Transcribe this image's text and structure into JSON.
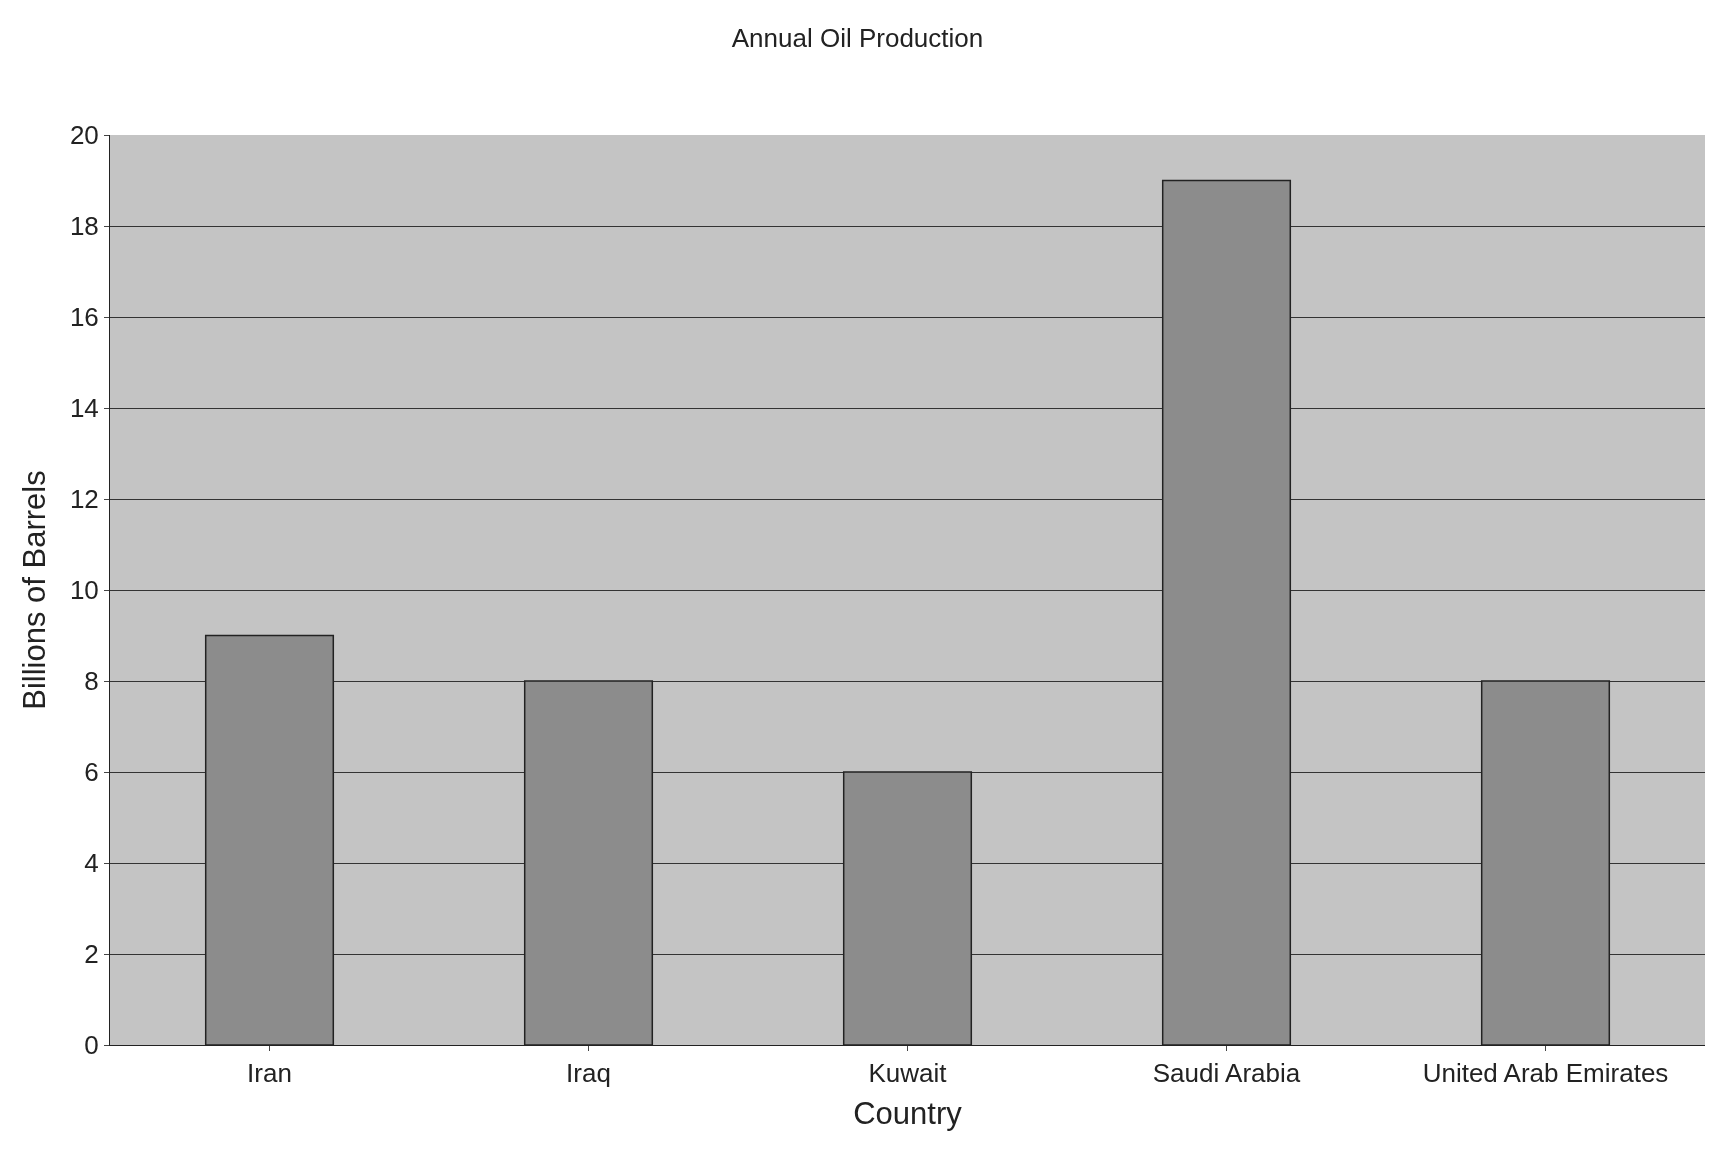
{
  "chart_data": {
    "type": "bar",
    "title": "Annual Oil Production",
    "xlabel": "Country",
    "ylabel": "Billions of Barrels",
    "categories": [
      "Iran",
      "Iraq",
      "Kuwait",
      "Saudi Arabia",
      "United Arab Emirates"
    ],
    "values": [
      9,
      8,
      6,
      19,
      8
    ],
    "color": "#8c8c8c",
    "ylim": [
      0,
      20
    ],
    "yticks": [
      0,
      2,
      4,
      6,
      8,
      10,
      12,
      14,
      16,
      18,
      20
    ],
    "grid": "y",
    "legend": false
  }
}
